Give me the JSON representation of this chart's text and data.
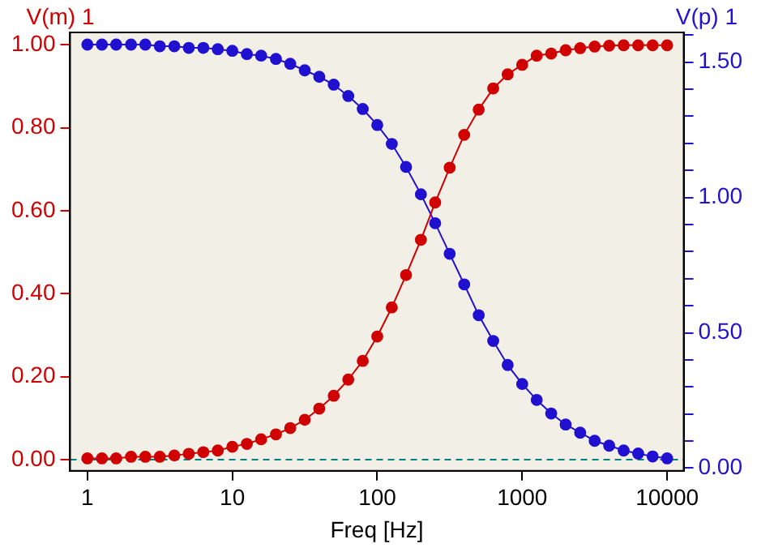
{
  "chart_data": {
    "type": "line",
    "xlabel": "Freq [Hz]",
    "ylabel": "V(m) 1",
    "y2label": "V(p) 1",
    "x": [
      1,
      1.26,
      1.58,
      2,
      2.51,
      3.16,
      3.98,
      5.01,
      6.31,
      7.94,
      10,
      12.6,
      15.8,
      20,
      25.1,
      31.6,
      39.8,
      50.1,
      63.1,
      79.4,
      100,
      126,
      158,
      200,
      251,
      316,
      398,
      501,
      631,
      794,
      1000,
      1259,
      1585,
      1995,
      2512,
      3162,
      3981,
      5012,
      6310,
      7943,
      10000
    ],
    "series": [
      {
        "color": "#d00000",
        "values": [
          0.003,
          0.003,
          0.003,
          0.007,
          0.007,
          0.007,
          0.01,
          0.014,
          0.018,
          0.022,
          0.031,
          0.038,
          0.049,
          0.061,
          0.076,
          0.096,
          0.123,
          0.154,
          0.193,
          0.238,
          0.297,
          0.367,
          0.445,
          0.53,
          0.62,
          0.704,
          0.783,
          0.844,
          0.895,
          0.929,
          0.952,
          0.974,
          0.979,
          0.987,
          0.992,
          0.996,
          0.998,
          0.999,
          0.999,
          0.999,
          0.999
        ]
      },
      {
        "color": "#2010d0",
        "axis": "y2",
        "values": [
          1.565,
          1.565,
          1.565,
          1.565,
          1.565,
          1.559,
          1.559,
          1.553,
          1.553,
          1.548,
          1.542,
          1.53,
          1.524,
          1.512,
          1.494,
          1.47,
          1.446,
          1.417,
          1.375,
          1.327,
          1.268,
          1.198,
          1.113,
          1.012,
          0.905,
          0.792,
          0.679,
          0.565,
          0.47,
          0.381,
          0.311,
          0.252,
          0.202,
          0.161,
          0.131,
          0.101,
          0.083,
          0.065,
          0.054,
          0.043,
          0.036
        ]
      }
    ],
    "log": "x",
    "xlim": [
      0.76,
      13000
    ],
    "xticks": [
      1,
      10,
      100,
      1000,
      10000
    ],
    "ylim": [
      -0.027,
      1.03
    ],
    "yticks": [
      {
        "value": 0,
        "label": "0.00"
      },
      {
        "value": 0.2,
        "label": "0.20"
      },
      {
        "value": 0.4,
        "label": "0.40"
      },
      {
        "value": 0.6,
        "label": "0.60"
      },
      {
        "value": 0.8,
        "label": "0.80"
      },
      {
        "value": 1,
        "label": "1.00"
      }
    ],
    "y2lim": [
      -0.01,
      1.61
    ],
    "y2ticks": [
      {
        "value": 0,
        "label": "0.00"
      },
      {
        "value": 0.1,
        "label": null
      },
      {
        "value": 0.2,
        "label": null
      },
      {
        "value": 0.3,
        "label": null
      },
      {
        "value": 0.4,
        "label": null
      },
      {
        "value": 0.5,
        "label": "0.50"
      },
      {
        "value": 0.6,
        "label": null
      },
      {
        "value": 0.7,
        "label": null
      },
      {
        "value": 0.8,
        "label": null
      },
      {
        "value": 0.9,
        "label": null
      },
      {
        "value": 1,
        "label": "1.00"
      },
      {
        "value": 1.1,
        "label": null
      },
      {
        "value": 1.2,
        "label": null
      },
      {
        "value": 1.3,
        "label": null
      },
      {
        "value": 1.4,
        "label": null
      },
      {
        "value": 1.5,
        "label": "1.50"
      },
      {
        "value": 1.6,
        "label": null
      }
    ],
    "ref_lines": [
      {
        "axis": "y",
        "value": 0,
        "color": "#008080",
        "line_style": "dashed"
      }
    ],
    "marker": "circle",
    "line_style": "solid",
    "legend": false
  }
}
